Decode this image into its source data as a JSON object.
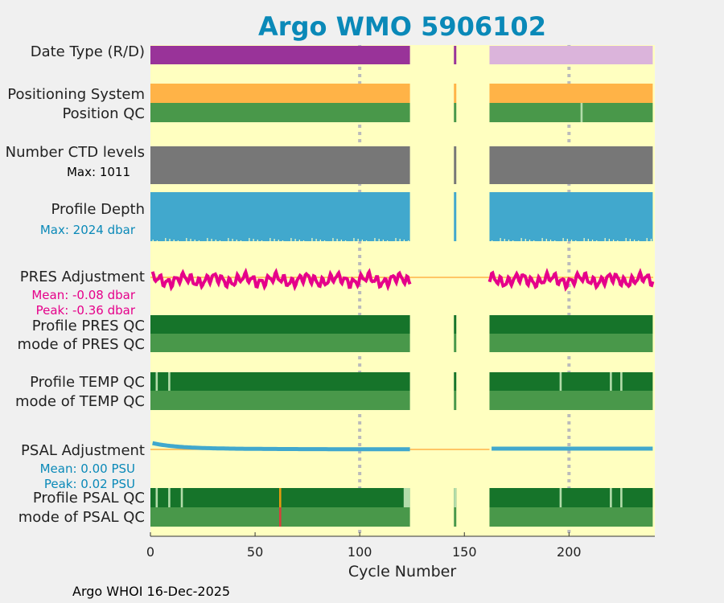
{
  "title": "Argo WMO 5906102",
  "footer": "Argo WHOI 16-Dec-2025",
  "colors": {
    "background": "#f0f0f0",
    "plot_bg": "#ffffc0",
    "title": "#0a89b8",
    "date_type_real": "#993399",
    "date_type_delayed": "#dbb4db",
    "positioning": "#ffb347",
    "qc_good": "#49984a",
    "qc_good_dark": "#16742a",
    "qc_light": "#b3dcaa",
    "qc_orange": "#e39a10",
    "qc_red": "#d5403b",
    "ctd": "#777777",
    "depth": "#41a8cd",
    "pres_adj": "#e5008a",
    "psal_adj": "#41a8cd",
    "zero_line": "#ffb347",
    "grid": "#bbbbbb",
    "axis_text": "#222222"
  },
  "chart_data": {
    "type": "table",
    "xlabel": "Cycle Number",
    "xlim": [
      0,
      241
    ],
    "xticks": [
      0,
      50,
      100,
      150,
      200
    ],
    "gridlines": [
      100,
      200
    ],
    "segments": [
      [
        0,
        124
      ],
      [
        145,
        146
      ],
      [
        162,
        240
      ]
    ],
    "rows": {
      "date_type": {
        "label": "Date Type (R/D)",
        "blocks": [
          {
            "from": 0,
            "to": 124,
            "value": "D"
          },
          {
            "from": 145,
            "to": 146,
            "value": "R"
          },
          {
            "from": 162,
            "to": 240,
            "value": "R"
          }
        ]
      },
      "positioning": {
        "label": "Positioning System"
      },
      "position_qc": {
        "label": "Position QC",
        "marks": [
          {
            "cycle": 206,
            "qc": "light"
          }
        ]
      },
      "ctd_levels": {
        "label": "Number CTD levels",
        "max_text": "Max: 1011"
      },
      "profile_depth": {
        "label": "Profile Depth",
        "max_text": "Max: 2024 dbar",
        "max_dbar": 2024
      },
      "pres_adjustment": {
        "label": "PRES Adjustment",
        "mean_text": "Mean: -0.08 dbar",
        "peak_text": "Peak: -0.36 dbar",
        "mean": -0.08,
        "peak": -0.36
      },
      "profile_pres_qc": {
        "label": "Profile PRES QC"
      },
      "mode_pres_qc": {
        "label": "mode of PRES QC"
      },
      "profile_temp_qc": {
        "label": "Profile TEMP QC",
        "marks": [
          {
            "cycle": 3,
            "qc": "light"
          },
          {
            "cycle": 9,
            "qc": "light"
          },
          {
            "cycle": 196,
            "qc": "light"
          },
          {
            "cycle": 220,
            "qc": "light"
          },
          {
            "cycle": 225,
            "qc": "light"
          }
        ]
      },
      "mode_temp_qc": {
        "label": "mode of TEMP QC"
      },
      "psal_adjustment": {
        "label": "PSAL Adjustment",
        "mean_text": "Mean: 0.00 PSU",
        "peak_text": "Peak: 0.02 PSU",
        "mean": 0.0,
        "peak": 0.02
      },
      "profile_psal_qc": {
        "label": "Profile PSAL QC",
        "marks": [
          {
            "cycle": 3,
            "qc": "light"
          },
          {
            "cycle": 9,
            "qc": "light"
          },
          {
            "cycle": 15,
            "qc": "light"
          },
          {
            "cycle": 62,
            "qc": "orange"
          },
          {
            "cycle": 196,
            "qc": "light"
          },
          {
            "cycle": 220,
            "qc": "light"
          },
          {
            "cycle": 225,
            "qc": "light"
          }
        ],
        "light_blocks": [
          {
            "from": 121,
            "to": 124
          },
          {
            "from": 145,
            "to": 146
          }
        ]
      },
      "mode_psal_qc": {
        "label": "mode of PSAL QC",
        "marks": [
          {
            "cycle": 62,
            "qc": "red"
          }
        ]
      }
    }
  }
}
